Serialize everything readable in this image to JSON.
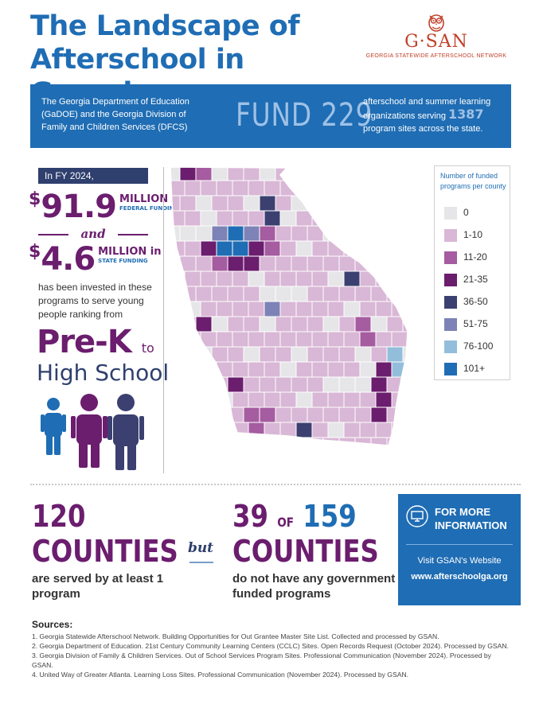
{
  "title": {
    "line1": "The Landscape of",
    "line2": "Afterschool in Georgia"
  },
  "logo": {
    "word": "G·SAN",
    "subtitle": "GEORGIA STATEWIDE AFTERSCHOOL NETWORK",
    "icon": "owl-icon",
    "color": "#c1402a"
  },
  "banner": {
    "left_text": "The Georgia Department of Education (GaDOE) and the Georgia Division of Family and Children Services (DFCS)",
    "fund_text": "FUND 229",
    "right_text_before": "afterschool and summer learning organizations serving",
    "site_count": "1387",
    "right_text_after": "program sites across the state."
  },
  "funding": {
    "fy_label": "In FY 2024,",
    "federal": {
      "dollar": "$",
      "amount": "91.9",
      "unit": "MILLION in",
      "type": "FEDERAL FUNDING"
    },
    "and_label": "and",
    "state": {
      "dollar": "$",
      "amount": "4.6",
      "unit": "MILLION in",
      "type": "STATE FUNDING"
    },
    "invested_text": "has been invested in these programs to serve young people ranking from",
    "range_start": "Pre-K",
    "range_to": "to",
    "range_end": "High School"
  },
  "legend": {
    "title": "Number of funded programs per county",
    "items": [
      {
        "label": "0",
        "color": "#e6e6e8"
      },
      {
        "label": "1-10",
        "color": "#d9b7d6"
      },
      {
        "label": "11-20",
        "color": "#a55ca0"
      },
      {
        "label": "21-35",
        "color": "#6b1d6e"
      },
      {
        "label": "36-50",
        "color": "#3b4070"
      },
      {
        "label": "51-75",
        "color": "#7d83b6"
      },
      {
        "label": "76-100",
        "color": "#93bedb"
      },
      {
        "label": "101+",
        "color": "#1f6db4"
      }
    ]
  },
  "stats": {
    "served": {
      "number": "120",
      "word": "COUNTIES",
      "caption": "are served by at least 1 program"
    },
    "but_label": "but",
    "unserved": {
      "number": "39",
      "of_label": "OF",
      "total": "159",
      "word": "COUNTIES",
      "caption": "do not have any government funded programs"
    }
  },
  "info_box": {
    "heading": "FOR MORE INFORMATION",
    "icon": "computer-icon",
    "visit_text": "Visit GSAN's Website",
    "url": "www.afterschoolga.org"
  },
  "sources": {
    "title": "Sources:",
    "items": [
      "1. Georgia Statewide Afterschool Network. Building Opportunities for Out Grantee Master Site List. Collected and processed by GSAN.",
      "2. Georgia Department of Education. 21st Century Community Learning Centers (CCLC) Sites. Open Records Request (October 2024). Processed by GSAN.",
      "3. Georgia Division of Family & Children Services. Out of School Services Program Sites. Professional Communication (November 2024). Processed by GSAN.",
      "4. United Way of Greater Atlanta. Learning Loss Sites. Professional Communication (November 2024). Processed by GSAN."
    ]
  },
  "colors": {
    "blue": "#1f6db4",
    "purple": "#6b1d6e",
    "navy": "#2f3f6e"
  }
}
